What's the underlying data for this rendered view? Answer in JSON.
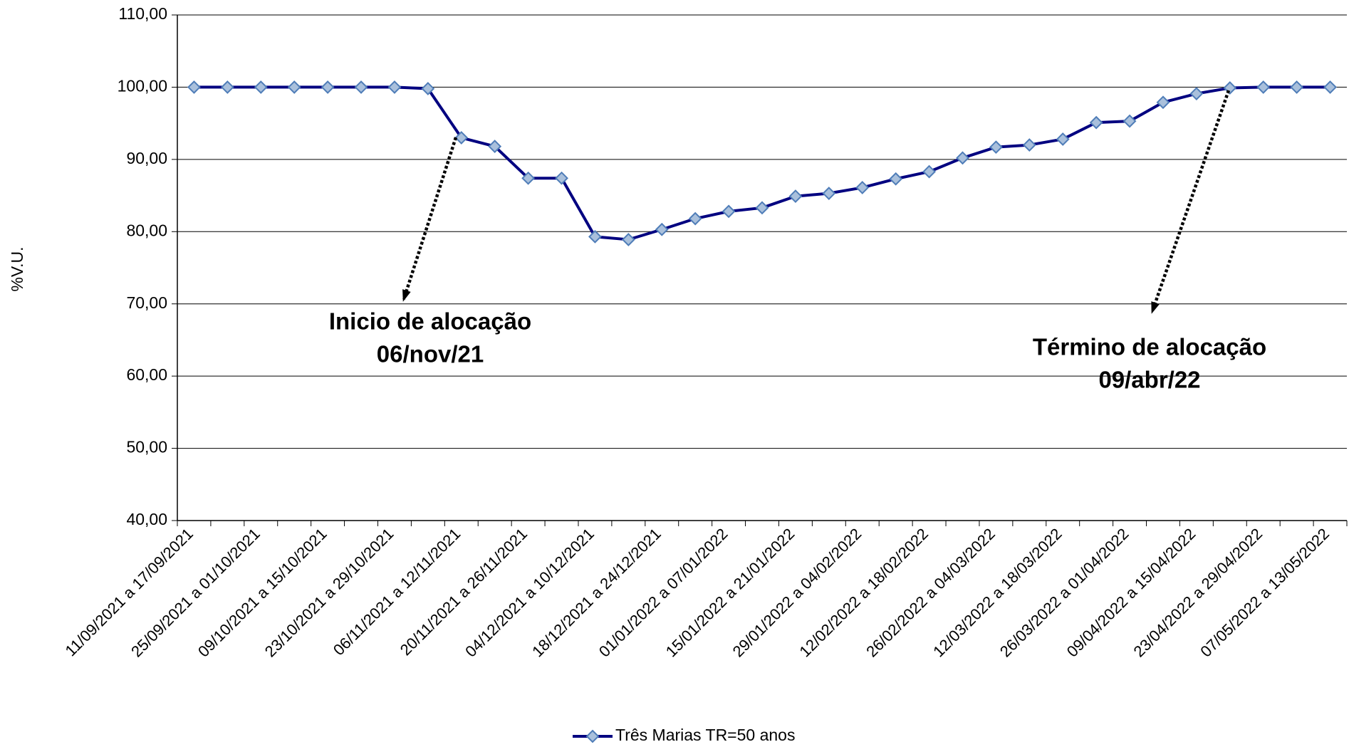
{
  "chart_data": {
    "type": "line",
    "y_label": "%V.U.",
    "categories": [
      "11/09/2021 a 17/09/2021",
      null,
      "25/09/2021 a 01/10/2021",
      null,
      "09/10/2021 a 15/10/2021",
      null,
      "23/10/2021 a 29/10/2021",
      null,
      "06/11/2021 a 12/11/2021",
      null,
      "20/11/2021 a 26/11/2021",
      null,
      "04/12/2021 a 10/12/2021",
      null,
      "18/12/2021 a 24/12/2021",
      null,
      "01/01/2022 a 07/01/2022",
      null,
      "15/01/2022 a 21/01/2022",
      null,
      "29/01/2022 a 04/02/2022",
      null,
      "12/02/2022 a 18/02/2022",
      null,
      "26/02/2022 a 04/03/2022",
      null,
      "12/03/2022 a 18/03/2022",
      null,
      "26/03/2022 a 01/04/2022",
      null,
      "09/04/2022 a 15/04/2022",
      null,
      "23/04/2022 a 29/04/2022",
      null,
      "07/05/2022 a 13/05/2022"
    ],
    "series": [
      {
        "name": "Três Marias TR=50 anos",
        "color": "#000080",
        "marker_fill": "#a9c0dc",
        "marker_stroke": "#4f7db8",
        "values": [
          100,
          100,
          100,
          100,
          100,
          100,
          100,
          99.8,
          93.0,
          91.8,
          87.4,
          87.4,
          79.3,
          78.9,
          80.3,
          81.8,
          82.8,
          83.3,
          84.9,
          85.3,
          86.1,
          87.3,
          88.3,
          90.2,
          91.7,
          92.0,
          92.8,
          95.1,
          95.3,
          97.9,
          99.1,
          99.9,
          100,
          100,
          100
        ]
      }
    ],
    "ylim": [
      40,
      110
    ],
    "yticks": [
      {
        "value": 40,
        "label": "40,00"
      },
      {
        "value": 50,
        "label": "50,00"
      },
      {
        "value": 60,
        "label": "60,00"
      },
      {
        "value": 70,
        "label": "70,00"
      },
      {
        "value": 80,
        "label": "80,00"
      },
      {
        "value": 90,
        "label": "90,00"
      },
      {
        "value": 100,
        "label": "100,00"
      },
      {
        "value": 110,
        "label": "110,00"
      }
    ],
    "grid": true,
    "legend": "bottom",
    "annotations": [
      {
        "lines": [
          "Inicio de alocação",
          "06/nov/21"
        ]
      },
      {
        "lines": [
          "Término de alocação",
          "09/abr/22"
        ]
      }
    ]
  }
}
